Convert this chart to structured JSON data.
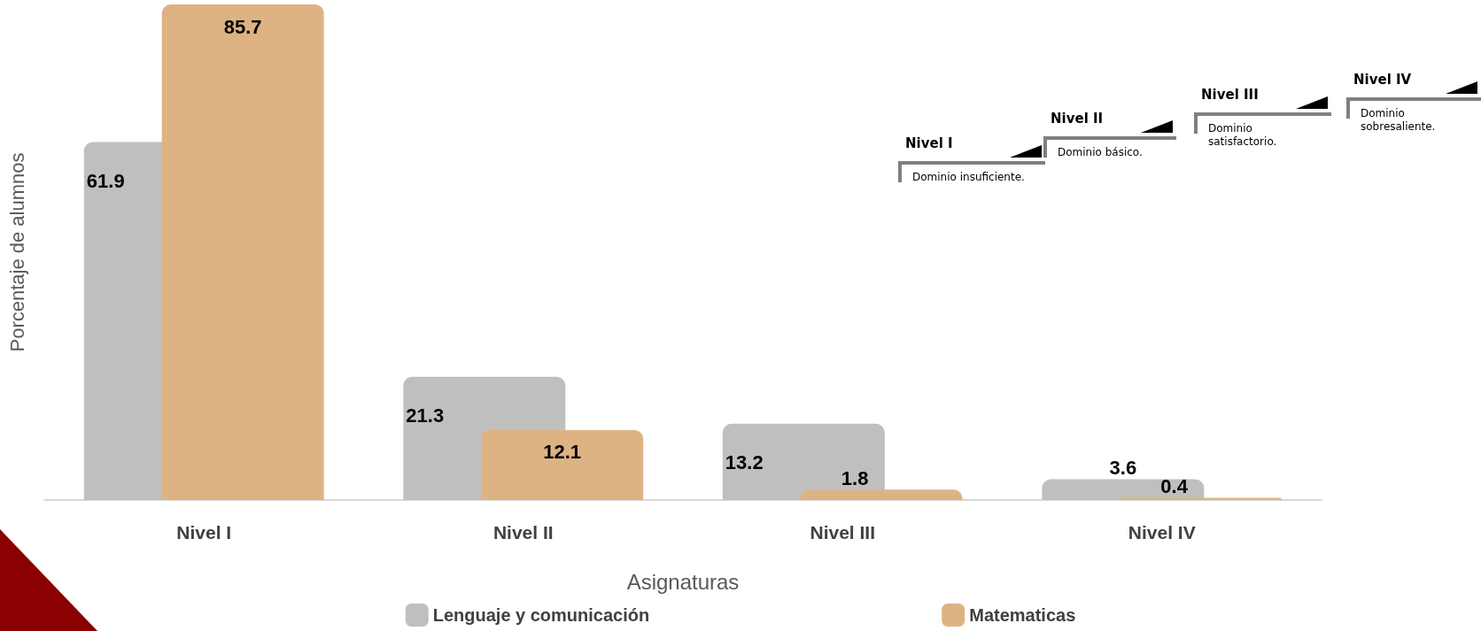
{
  "chart_data": {
    "type": "bar",
    "xlabel": "Asignaturas",
    "ylabel": "Porcentaje de alumnos",
    "categories": [
      "Nivel I",
      "Nivel II",
      "Nivel III",
      "Nivel IV"
    ],
    "series": [
      {
        "name": "Lenguaje y comunicación",
        "color": "#bfbfbf",
        "values": [
          61.9,
          21.3,
          13.2,
          3.6
        ]
      },
      {
        "name": "Matematicas",
        "color": "#ddb384",
        "values": [
          85.7,
          12.1,
          1.8,
          0.4
        ]
      }
    ],
    "data_labels": true,
    "legend": "bottom",
    "grid": false,
    "annotations": [
      "Nivel I",
      "Dominio insuficiente.",
      "Nivel II",
      "Dominio básico.",
      "Nivel III",
      "Dominio satisfactorio.",
      "Nivel IV",
      "Dominio sobresaliente."
    ]
  }
}
